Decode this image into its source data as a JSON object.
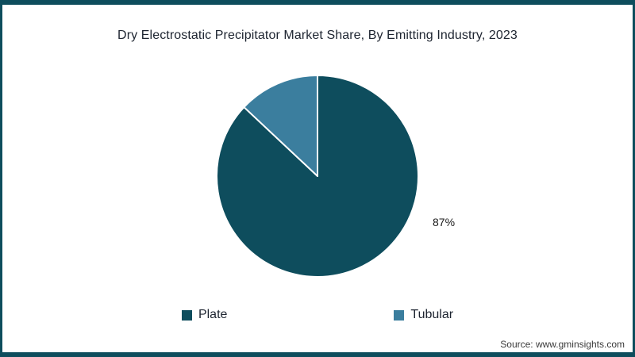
{
  "title": "Dry Electrostatic Precipitator Market Share, By Emitting Industry, 2023",
  "source": "Source: www.gminsights.com",
  "frame": {
    "accent_color": "#0e4d5d",
    "background": "#ffffff"
  },
  "chart_data": {
    "type": "pie",
    "title": "Dry Electrostatic Precipitator Market Share, By Emitting Industry, 2023",
    "slices": [
      {
        "label": "Plate",
        "value": 87,
        "color": "#0e4d5d"
      },
      {
        "label": "Tubular",
        "value": 13,
        "color": "#3b7e9e"
      }
    ],
    "data_label": "87%",
    "data_label_for": "Plate",
    "start_angle_deg": 0,
    "direction": "clockwise",
    "slice_border_color": "#ffffff",
    "legend_position": "bottom"
  }
}
